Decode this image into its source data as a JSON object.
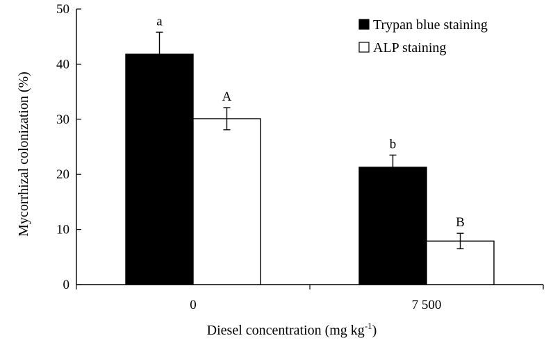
{
  "chart_data": {
    "type": "bar",
    "categories": [
      "0",
      "7 500"
    ],
    "series": [
      {
        "name": "Trypan blue staining",
        "color": "#000000",
        "values": [
          41.8,
          21.3
        ],
        "errors": [
          4.0,
          2.2
        ],
        "labels": [
          "a",
          "b"
        ]
      },
      {
        "name": "ALP staining",
        "color": "#ffffff",
        "values": [
          30.1,
          7.9
        ],
        "errors": [
          2.0,
          1.4
        ],
        "labels": [
          "A",
          "B"
        ]
      }
    ],
    "xlabel": "Diesel concentration (mg kg",
    "xlabel_sup": "-1",
    "xlabel_end": ")",
    "ylabel": "Mycorrhizal colonization (%)",
    "ylim": [
      0,
      50
    ],
    "yticks": [
      0,
      10,
      20,
      30,
      40,
      50
    ],
    "grid": false,
    "legend_position": "top-right"
  }
}
